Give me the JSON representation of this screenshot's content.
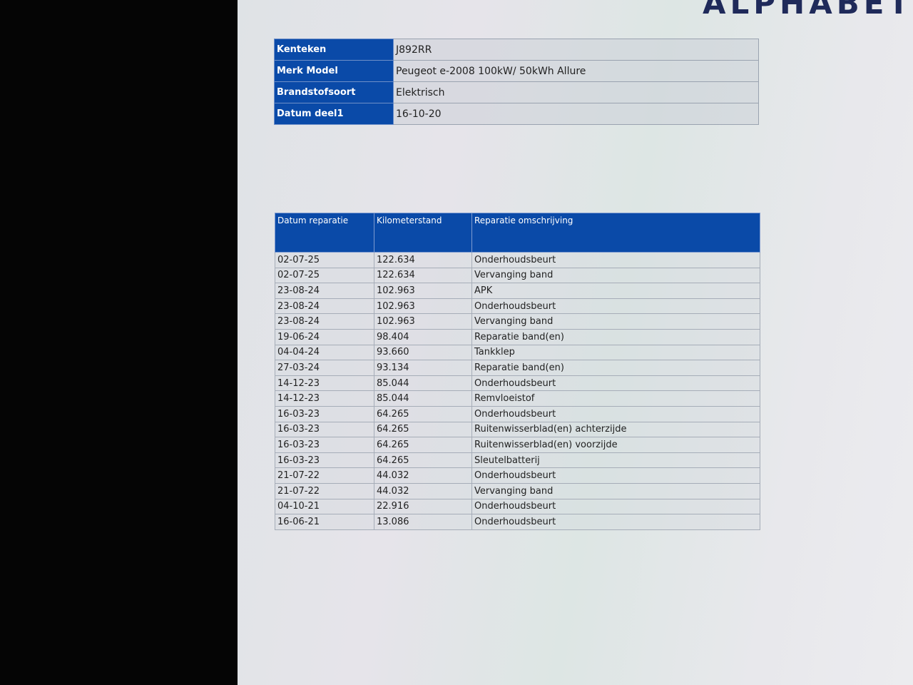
{
  "logo": "ALPHABET",
  "vehicle": [
    {
      "label": "Kenteken",
      "value": "J892RR"
    },
    {
      "label": "Merk Model",
      "value": "Peugeot e-2008 100kW/ 50kWh Allure"
    },
    {
      "label": "Brandstofsoort",
      "value": "Elektrisch"
    },
    {
      "label": "Datum deel1",
      "value": "16-10-20"
    }
  ],
  "repairs": {
    "headers": [
      "Datum reparatie",
      "Kilometerstand",
      "Reparatie omschrijving"
    ],
    "rows": [
      [
        "02-07-25",
        "122.634",
        "Onderhoudsbeurt"
      ],
      [
        "02-07-25",
        "122.634",
        "Vervanging band"
      ],
      [
        "23-08-24",
        "102.963",
        "APK"
      ],
      [
        "23-08-24",
        "102.963",
        "Onderhoudsbeurt"
      ],
      [
        "23-08-24",
        "102.963",
        "Vervanging band"
      ],
      [
        "19-06-24",
        "98.404",
        "Reparatie band(en)"
      ],
      [
        "04-04-24",
        "93.660",
        "Tankklep"
      ],
      [
        "27-03-24",
        "93.134",
        "Reparatie band(en)"
      ],
      [
        "14-12-23",
        "85.044",
        "Onderhoudsbeurt"
      ],
      [
        "14-12-23",
        "85.044",
        "Remvloeistof"
      ],
      [
        "16-03-23",
        "64.265",
        "Onderhoudsbeurt"
      ],
      [
        "16-03-23",
        "64.265",
        "Ruitenwisserblad(en) achterzijde"
      ],
      [
        "16-03-23",
        "64.265",
        "Ruitenwisserblad(en) voorzijde"
      ],
      [
        "16-03-23",
        "64.265",
        "Sleutelbatterij"
      ],
      [
        "21-07-22",
        "44.032",
        "Onderhoudsbeurt"
      ],
      [
        "21-07-22",
        "44.032",
        "Vervanging band"
      ],
      [
        "04-10-21",
        "22.916",
        "Onderhoudsbeurt"
      ],
      [
        "16-06-21",
        "13.086",
        "Onderhoudsbeurt"
      ]
    ]
  }
}
